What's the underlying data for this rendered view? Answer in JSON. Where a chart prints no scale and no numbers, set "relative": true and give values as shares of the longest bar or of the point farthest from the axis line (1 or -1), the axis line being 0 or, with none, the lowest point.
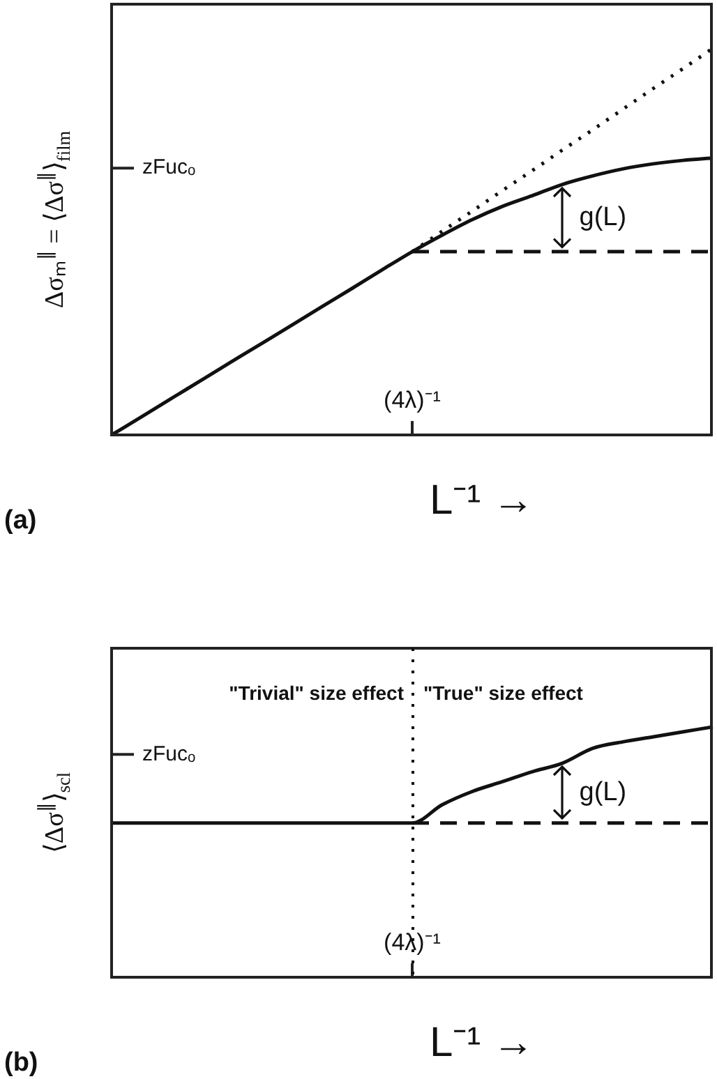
{
  "chart_data": [
    {
      "type": "line",
      "xlabel": "L⁻¹ →",
      "ylabel": "Δσₘ$^{∥}$ = ⟨Δσ$^{∥}$⟩$_{film}$",
      "relative": true,
      "categories": [
        null,
        null,
        null,
        null,
        null,
        null,
        null,
        null,
        null,
        null,
        null,
        null,
        null,
        null,
        null,
        null,
        null,
        null,
        null,
        null,
        null
      ],
      "series": [
        {
          "color": "#111111",
          "values": [
            0,
            0.047,
            0.095,
            0.142,
            0.19,
            0.237,
            0.284,
            0.332,
            0.379,
            0.427,
            0.474,
            0.517,
            0.557,
            0.591,
            0.619,
            0.648,
            0.67,
            0.688,
            0.701,
            0.71,
            0.716
          ]
        },
        {
          "color": "#111111",
          "line_style": "dashed",
          "values": [
            null,
            null,
            null,
            null,
            null,
            null,
            null,
            null,
            null,
            null,
            0.474,
            0.474,
            0.474,
            0.474,
            0.474,
            0.474,
            0.474,
            0.474,
            0.474,
            0.474,
            0.474
          ]
        },
        {
          "color": "#111111",
          "line_style": "dotted",
          "values": [
            null,
            null,
            null,
            null,
            null,
            null,
            null,
            null,
            null,
            null,
            0.474,
            0.527,
            0.579,
            0.632,
            0.684,
            0.737,
            0.789,
            0.842,
            0.895,
            0.947,
            1
          ]
        }
      ],
      "annotations": [
        "(4λ)⁻¹",
        "zFucₒ",
        "g(L)",
        "(a)"
      ],
      "grid": false,
      "legend": false,
      "marker": "none"
    },
    {
      "type": "line",
      "xlabel": "L⁻¹ →",
      "ylabel": "⟨Δσ$^{∥}$⟩$_{scl}$",
      "relative": true,
      "categories": [
        null,
        null,
        null,
        null,
        null,
        null,
        null,
        null,
        null,
        null,
        null,
        null,
        null,
        null,
        null,
        null,
        null,
        null,
        null,
        null,
        null
      ],
      "series": [
        {
          "color": "#111111",
          "values": [
            0.616,
            0.616,
            0.616,
            0.616,
            0.616,
            0.616,
            0.616,
            0.616,
            0.616,
            0.616,
            0.616,
            0.689,
            0.742,
            0.781,
            0.821,
            0.855,
            0.914,
            0.94,
            0.96,
            0.98,
            1
          ]
        },
        {
          "color": "#111111",
          "line_style": "dashed",
          "values": [
            null,
            null,
            null,
            null,
            null,
            null,
            null,
            null,
            null,
            null,
            0.616,
            0.616,
            0.616,
            0.616,
            0.616,
            0.616,
            0.616,
            0.616,
            0.616,
            0.616,
            0.616
          ]
        }
      ],
      "annotations": [
        "(4λ)⁻¹",
        "zFucₒ",
        "g(L)",
        "(b)",
        "\"Trivial\" size effect",
        "\"True\" size effect"
      ],
      "grid": false,
      "legend": false,
      "marker": "none"
    }
  ]
}
